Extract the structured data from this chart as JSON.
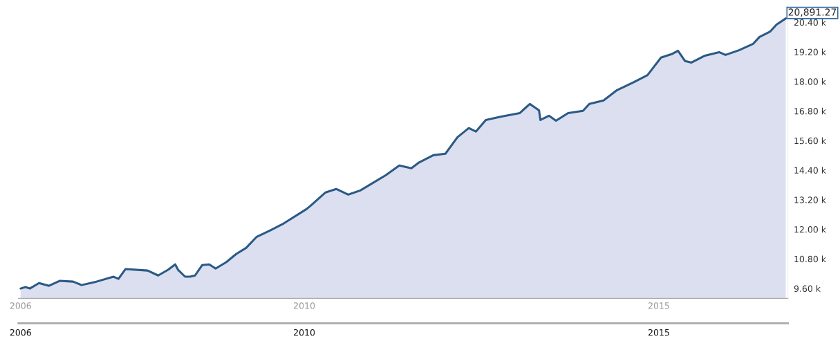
{
  "chart_data": {
    "type": "area",
    "x": [
      2006.0,
      2006.07,
      2006.13,
      2006.26,
      2006.4,
      2006.55,
      2006.74,
      2006.86,
      2007.07,
      2007.31,
      2007.38,
      2007.48,
      2007.79,
      2007.94,
      2008.08,
      2008.18,
      2008.22,
      2008.32,
      2008.39,
      2008.46,
      2008.56,
      2008.66,
      2008.75,
      2008.9,
      2009.04,
      2009.18,
      2009.33,
      2009.52,
      2009.71,
      2010.03,
      2010.09,
      2010.3,
      2010.45,
      2010.62,
      2010.79,
      2011.15,
      2011.34,
      2011.51,
      2011.61,
      2011.82,
      2011.99,
      2012.16,
      2012.32,
      2012.42,
      2012.56,
      2012.78,
      2013.04,
      2013.18,
      2013.31,
      2013.33,
      2013.45,
      2013.55,
      2013.72,
      2013.93,
      2014.02,
      2014.22,
      2014.41,
      2014.65,
      2014.84,
      2015.03,
      2015.18,
      2015.27,
      2015.37,
      2015.46,
      2015.65,
      2015.85,
      2015.94,
      2016.13,
      2016.33,
      2016.42,
      2016.57,
      2016.66,
      2016.79
    ],
    "series": [
      {
        "color": "#2b5a85",
        "values": [
          9600,
          9660,
          9600,
          9820,
          9710,
          9910,
          9880,
          9740,
          9880,
          10080,
          9990,
          10390,
          10330,
          10130,
          10360,
          10580,
          10360,
          10080,
          10080,
          10130,
          10550,
          10580,
          10410,
          10670,
          11000,
          11250,
          11700,
          11960,
          12240,
          12820,
          12960,
          13500,
          13640,
          13410,
          13580,
          14200,
          14590,
          14480,
          14700,
          15010,
          15070,
          15740,
          16110,
          15970,
          16440,
          16580,
          16720,
          17090,
          16830,
          16440,
          16610,
          16410,
          16720,
          16810,
          17090,
          17230,
          17650,
          17980,
          18260,
          18970,
          19110,
          19250,
          18830,
          18770,
          19050,
          19190,
          19080,
          19270,
          19530,
          19810,
          20030,
          20310,
          20560
        ]
      }
    ],
    "xlim": [
      2005.97,
      2016.82
    ],
    "xticks": [
      2006,
      2010,
      2015
    ],
    "x2lim": [
      2005.97,
      2016.82
    ],
    "x2ticks": [
      2006,
      2010,
      2015
    ],
    "ylim": [
      9200,
      21100
    ],
    "yticks": [
      {
        "value": 9600,
        "label": "9.60 k"
      },
      {
        "value": 10800,
        "label": "10.80 k"
      },
      {
        "value": 12000,
        "label": "12.00 k"
      },
      {
        "value": 13200,
        "label": "13.20 k"
      },
      {
        "value": 14400,
        "label": "14.40 k"
      },
      {
        "value": 15600,
        "label": "15.60 k"
      },
      {
        "value": 16800,
        "label": "16.80 k"
      },
      {
        "value": 18000,
        "label": "18.00 k"
      },
      {
        "value": 19200,
        "label": "19.20 k"
      },
      {
        "value": 20400,
        "label": "20.40 k"
      }
    ],
    "annotations": [
      "20,891.27"
    ],
    "grid": false,
    "legend": false
  }
}
